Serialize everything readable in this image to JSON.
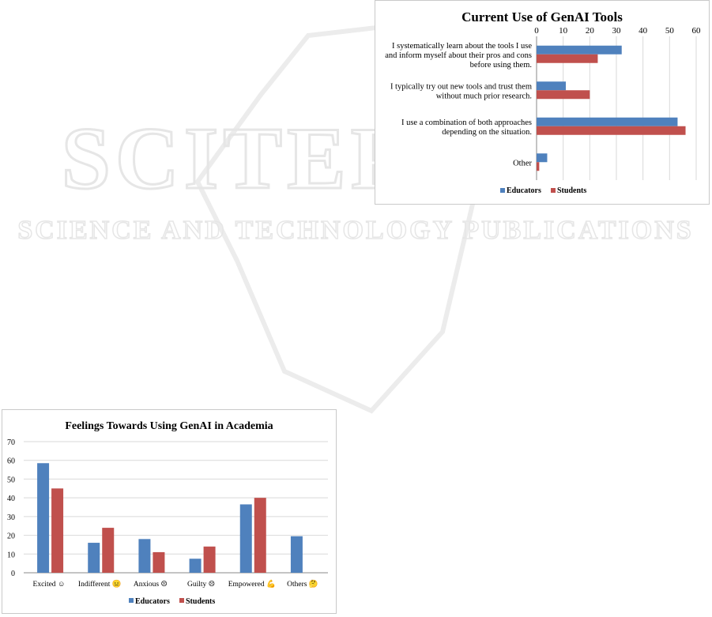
{
  "watermark": {
    "line1": "SCITEPRESS",
    "line2": "SCIENCE AND TECHNOLOGY PUBLICATIONS"
  },
  "colors": {
    "educators": "#4f81bd",
    "students": "#c0504d",
    "grid": "#d9d9d9",
    "watermark": "#ececec"
  },
  "chart_data": [
    {
      "type": "bar",
      "orientation": "horizontal",
      "title": "Current Use of GenAI Tools",
      "categories": [
        [
          "I systematically learn about the tools I use",
          "and inform myself about their pros and cons",
          "before using them."
        ],
        [
          "I typically try out new tools and trust them",
          "without much prior research."
        ],
        [
          "I use a combination of both approaches",
          "depending on the situation."
        ],
        [
          "Other"
        ]
      ],
      "series": [
        {
          "name": "Educators",
          "values": [
            32,
            11,
            53,
            4
          ]
        },
        {
          "name": "Students",
          "values": [
            23,
            20,
            56,
            1
          ]
        }
      ],
      "xlim": [
        0,
        60
      ],
      "xticks": [
        0,
        10,
        20,
        30,
        40,
        50,
        60
      ],
      "grid": true,
      "legend": "bottom"
    },
    {
      "type": "bar",
      "orientation": "vertical",
      "title": "Feelings Towards Using GenAI in Academia",
      "categories": [
        "Excited ☺",
        "Indifferent 😐",
        "Anxious ☹",
        "Guilty ☹",
        "Empowered 💪",
        "Others 🤔"
      ],
      "series": [
        {
          "name": "Educators",
          "values": [
            58.5,
            16,
            18,
            7.5,
            36.5,
            19.5
          ]
        },
        {
          "name": "Students",
          "values": [
            45,
            24,
            11,
            14,
            40,
            null
          ]
        }
      ],
      "ylim": [
        0,
        70
      ],
      "yticks": [
        0,
        10,
        20,
        30,
        40,
        50,
        60,
        70
      ],
      "grid": true,
      "legend": "bottom"
    }
  ]
}
